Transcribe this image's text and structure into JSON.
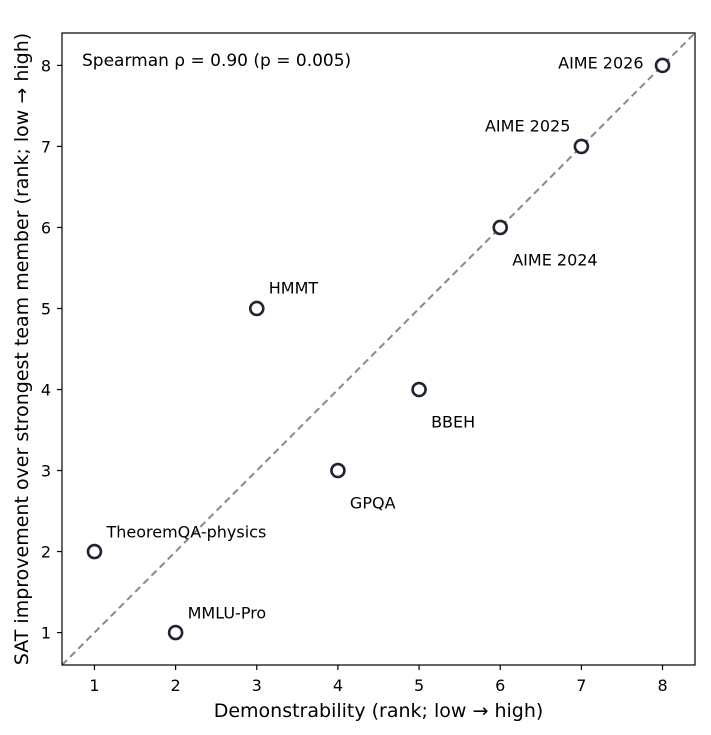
{
  "chart_data": {
    "type": "scatter",
    "xlabel": "Demonstrability (rank; low → high)",
    "ylabel": "SAT improvement over strongest team member (rank; low → high)",
    "xlim": [
      0.6,
      8.4
    ],
    "ylim": [
      0.6,
      8.4
    ],
    "xticks": [
      1,
      2,
      3,
      4,
      5,
      6,
      7,
      8
    ],
    "yticks": [
      1,
      2,
      3,
      4,
      5,
      6,
      7,
      8
    ],
    "grid": false,
    "annotation": "Spearman ρ = 0.90 (p = 0.005)",
    "reference_line": "y = x (dashed, gray)",
    "marker": {
      "shape": "hollow-circle",
      "color": "#1f2530"
    },
    "points": [
      {
        "label": "TheoremQA-physics",
        "x": 1,
        "y": 2
      },
      {
        "label": "MMLU-Pro",
        "x": 2,
        "y": 1
      },
      {
        "label": "HMMT",
        "x": 3,
        "y": 5
      },
      {
        "label": "GPQA",
        "x": 4,
        "y": 3
      },
      {
        "label": "BBEH",
        "x": 5,
        "y": 4
      },
      {
        "label": "AIME 2024",
        "x": 6,
        "y": 6
      },
      {
        "label": "AIME 2025",
        "x": 7,
        "y": 7
      },
      {
        "label": "AIME 2026",
        "x": 8,
        "y": 8
      }
    ]
  }
}
